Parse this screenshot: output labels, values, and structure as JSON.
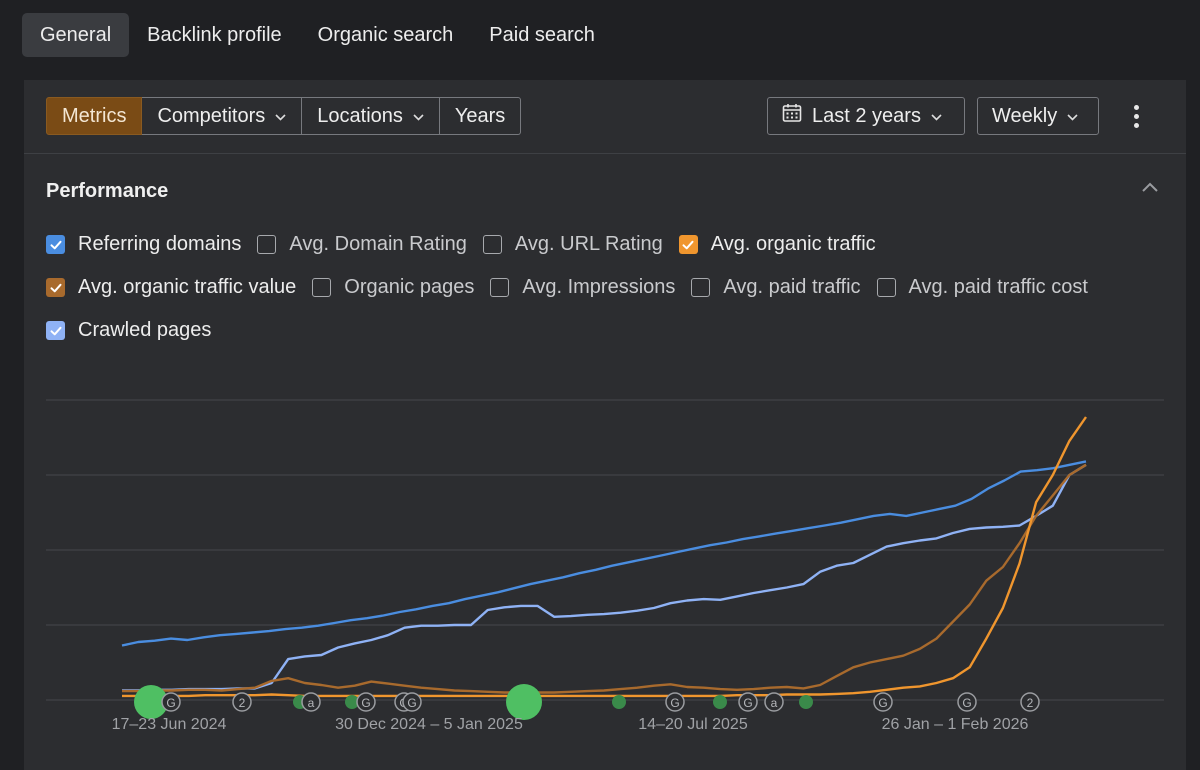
{
  "tabs": [
    {
      "label": "General",
      "active": true
    },
    {
      "label": "Backlink profile",
      "active": false
    },
    {
      "label": "Organic search",
      "active": false
    },
    {
      "label": "Paid search",
      "active": false
    }
  ],
  "toolbar": {
    "metrics": "Metrics",
    "competitors": "Competitors",
    "locations": "Locations",
    "years": "Years",
    "date_range": "Last 2 years",
    "interval": "Weekly"
  },
  "section": {
    "title": "Performance"
  },
  "metrics": [
    {
      "label": "Referring domains",
      "checked": true,
      "color": "#4a8de0"
    },
    {
      "label": "Avg. Domain Rating",
      "checked": false
    },
    {
      "label": "Avg. URL Rating",
      "checked": false
    },
    {
      "label": "Avg. organic traffic",
      "checked": true,
      "color": "#f0962e"
    },
    {
      "label": "Avg. organic traffic value",
      "checked": true,
      "color": "#a86a2d"
    },
    {
      "label": "Organic pages",
      "checked": false
    },
    {
      "label": "Avg. Impressions",
      "checked": false
    },
    {
      "label": "Avg. paid traffic",
      "checked": false
    },
    {
      "label": "Avg. paid traffic cost",
      "checked": false
    },
    {
      "label": "Crawled pages",
      "checked": true,
      "color": "#8fb2f5"
    }
  ],
  "chart_data": {
    "type": "line",
    "x_tick_labels": [
      "17–23 Jun 2024",
      "30 Dec 2024 – 5 Jan 2025",
      "14–20 Jul 2025",
      "26 Jan – 1 Feb 2026"
    ],
    "grid": true,
    "series": [
      {
        "name": "Referring domains",
        "color": "#4a8de0",
        "values": [
          8,
          8.5,
          8.7,
          9,
          8.8,
          9.2,
          9.5,
          9.7,
          9.9,
          10.1,
          10.4,
          10.6,
          10.9,
          11.3,
          11.7,
          12,
          12.4,
          12.9,
          13.3,
          13.8,
          14.2,
          14.8,
          15.3,
          15.8,
          16.4,
          17,
          17.5,
          18,
          18.6,
          19.1,
          19.7,
          20.2,
          20.7,
          21.2,
          21.7,
          22.2,
          22.7,
          23.1,
          23.6,
          24,
          24.4,
          24.8,
          25.2,
          25.6,
          26,
          26.5,
          27,
          27.3,
          27,
          27.5,
          28,
          28.5,
          29.5,
          31,
          32.2,
          33.5,
          33.7,
          34,
          34.5,
          35
        ]
      },
      {
        "name": "Crawled pages",
        "color": "#8fb2f5",
        "values": [
          1.4,
          1.4,
          1.5,
          1.5,
          1.6,
          1.6,
          1.6,
          1.7,
          1.7,
          2.5,
          6,
          6.4,
          6.6,
          7.7,
          8.3,
          8.8,
          9.5,
          10.6,
          10.9,
          10.9,
          11,
          11,
          13.2,
          13.6,
          13.8,
          13.8,
          12.2,
          12.3,
          12.5,
          12.6,
          12.8,
          13.1,
          13.5,
          14.2,
          14.6,
          14.8,
          14.7,
          15.2,
          15.7,
          16.1,
          16.5,
          17,
          18.8,
          19.7,
          20.1,
          21.3,
          22.5,
          23,
          23.4,
          23.7,
          24.5,
          25.1,
          25.3,
          25.4,
          25.6,
          27,
          28.5,
          33,
          34.5
        ]
      },
      {
        "name": "Avg. organic traffic value",
        "color": "#a86a2d",
        "values": [
          1.3,
          1.3,
          1.4,
          1.4,
          1.5,
          1.5,
          1.4,
          1.6,
          1.8,
          2.8,
          3.2,
          2.5,
          2.2,
          1.8,
          2.1,
          2.7,
          2.4,
          2.1,
          1.8,
          1.6,
          1.4,
          1.3,
          1.2,
          1.1,
          1.1,
          1.1,
          1.1,
          1.2,
          1.3,
          1.4,
          1.6,
          1.8,
          2.1,
          2.3,
          1.9,
          1.8,
          1.6,
          1.5,
          1.6,
          1.8,
          1.9,
          1.7,
          2.2,
          3.5,
          4.8,
          5.5,
          6,
          6.5,
          7.5,
          9,
          11.5,
          14,
          17.5,
          19.5,
          23,
          27,
          30,
          33,
          34.5
        ]
      },
      {
        "name": "Avg. organic traffic",
        "color": "#f0962e",
        "values": [
          0.6,
          0.6,
          0.6,
          0.6,
          0.6,
          0.7,
          0.7,
          0.7,
          0.7,
          0.8,
          0.7,
          0.6,
          0.6,
          0.6,
          0.6,
          0.6,
          0.6,
          0.6,
          0.6,
          0.6,
          0.6,
          0.6,
          0.6,
          0.6,
          0.6,
          0.6,
          0.6,
          0.6,
          0.6,
          0.6,
          0.6,
          0.6,
          0.6,
          0.6,
          0.6,
          0.6,
          0.6,
          0.7,
          0.7,
          0.7,
          0.8,
          0.8,
          0.8,
          0.9,
          1,
          1.2,
          1.5,
          1.8,
          2,
          2.5,
          3.2,
          4.8,
          9,
          13.5,
          20,
          29,
          33,
          38,
          41.5
        ]
      }
    ],
    "annotation_markers": [
      "G",
      "2",
      "a",
      "G",
      "G",
      "G",
      "G",
      "G",
      "a",
      "G",
      "G",
      "2"
    ]
  }
}
